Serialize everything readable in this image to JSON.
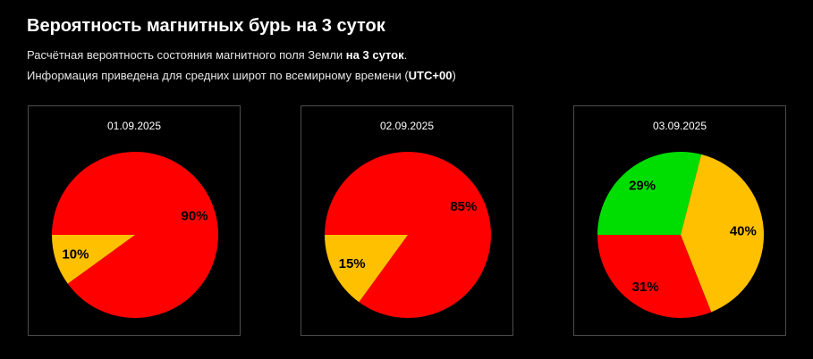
{
  "page": {
    "title": "Вероятность магнитных бурь на 3 суток",
    "line1_prefix": "Расчётная вероятность состояния магнитного поля Земли ",
    "line1_bold": "на 3 суток",
    "line1_suffix": ".",
    "line2_prefix": "Информация приведена для средних широт по всемирному времени (",
    "line2_bold": "UTC+00",
    "line2_suffix": ")"
  },
  "colors": {
    "red": "#ff0000",
    "yellow": "#ffc000",
    "green": "#00dd00",
    "background": "#000000"
  },
  "chart_data": [
    {
      "type": "pie",
      "title": "01.09.2025",
      "slices": [
        {
          "value": 90,
          "label": "90%",
          "color": "#ff0000"
        },
        {
          "value": 10,
          "label": "10%",
          "color": "#ffc000"
        }
      ]
    },
    {
      "type": "pie",
      "title": "02.09.2025",
      "slices": [
        {
          "value": 85,
          "label": "85%",
          "color": "#ff0000"
        },
        {
          "value": 15,
          "label": "15%",
          "color": "#ffc000"
        }
      ]
    },
    {
      "type": "pie",
      "title": "03.09.2025",
      "slices": [
        {
          "value": 29,
          "label": "29%",
          "color": "#00dd00"
        },
        {
          "value": 40,
          "label": "40%",
          "color": "#ffc000"
        },
        {
          "value": 31,
          "label": "31%",
          "color": "#ff0000"
        }
      ]
    }
  ]
}
